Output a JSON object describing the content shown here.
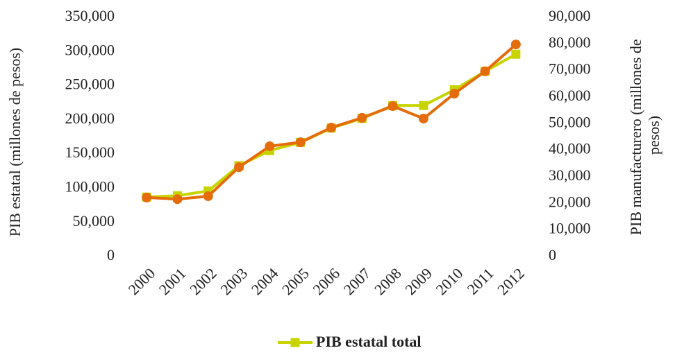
{
  "chart_data": {
    "type": "line",
    "ylabel": "PIB estatal (millones de pesos)",
    "y2label": [
      "PIB manufacturero (millones de",
      "pesos)"
    ],
    "categories": [
      "2000",
      "2001",
      "2002",
      "2003",
      "2004",
      "2005",
      "2006",
      "2007",
      "2008",
      "2009",
      "2010",
      "2011",
      "2012"
    ],
    "series": [
      {
        "name": "PIB estatal total",
        "color": "#c8d400",
        "marker": "square",
        "values": [
          87000,
          89000,
          96000,
          133000,
          155000,
          167000,
          188000,
          202000,
          221000,
          221000,
          244000,
          271000,
          296000
        ]
      },
      {
        "color": "#e46c0a",
        "marker": "circle",
        "axis": "y2",
        "values": [
          22200,
          21600,
          22700,
          33600,
          41500,
          43000,
          48500,
          52200,
          56600,
          51900,
          61300,
          69700,
          79800
        ]
      }
    ],
    "ylim": [
      0,
      350000
    ],
    "yticks": [
      0,
      {
        "value": 50000,
        "label": "50,000"
      },
      {
        "value": 100000,
        "label": "100,000"
      },
      {
        "value": 150000,
        "label": "150,000"
      },
      {
        "value": 200000,
        "label": "200,000"
      },
      {
        "value": 250000,
        "label": "250,000"
      },
      {
        "value": 300000,
        "label": "300,000"
      },
      {
        "value": 350000,
        "label": "350,000"
      }
    ],
    "y2lim": [
      0,
      90000
    ],
    "y2ticks": [
      0,
      {
        "value": 10000,
        "label": "10,000"
      },
      {
        "value": 20000,
        "label": "20,000"
      },
      {
        "value": 30000,
        "label": "30,000"
      },
      {
        "value": 40000,
        "label": "40,000"
      },
      {
        "value": 50000,
        "label": "50,000"
      },
      {
        "value": 60000,
        "label": "60,000"
      },
      {
        "value": 70000,
        "label": "70,000"
      },
      {
        "value": 80000,
        "label": "80,000"
      },
      {
        "value": 90000,
        "label": "90,000"
      }
    ],
    "legend": "bottom"
  }
}
